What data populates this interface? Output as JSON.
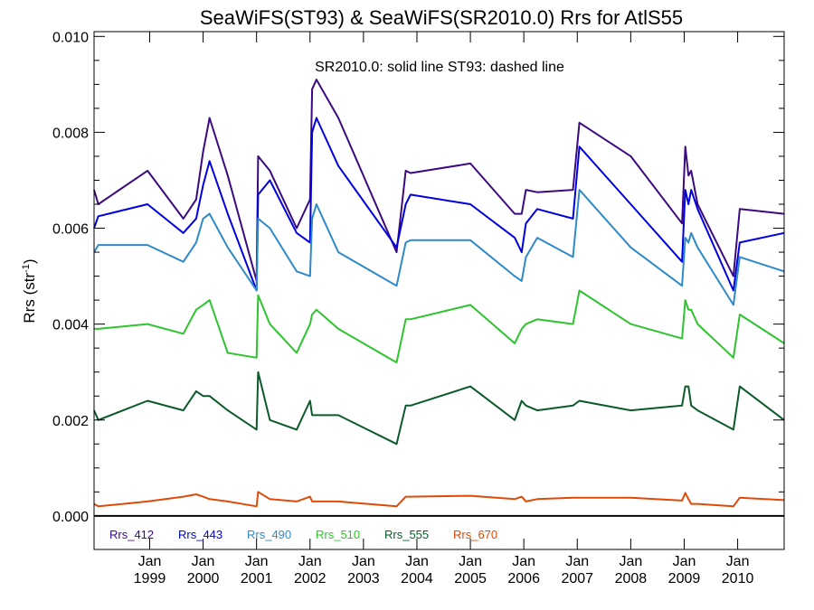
{
  "chart_data": {
    "type": "line",
    "title": "SeaWiFS(ST93) & SeaWiFS(SR2010.0)  Rrs for AtlS55",
    "annotation": "SR2010.0: solid line   ST93: dashed line",
    "ylabel": "Rrs (str",
    "ylabel_superscript": "-1",
    "ylabel_suffix": ")",
    "ylim": [
      -0.0007,
      0.0101
    ],
    "xlim": [
      1997.96,
      2010.87
    ],
    "yticks": [
      "0.000",
      "0.002",
      "0.004",
      "0.006",
      "0.008",
      "0.010"
    ],
    "xticks": [
      {
        "line1": "Jan",
        "line2": "1999"
      },
      {
        "line1": "Jan",
        "line2": "2000"
      },
      {
        "line1": "Jan",
        "line2": "2001"
      },
      {
        "line1": "Jan",
        "line2": "2002"
      },
      {
        "line1": "Jan",
        "line2": "2003"
      },
      {
        "line1": "Jan",
        "line2": "2004"
      },
      {
        "line1": "Jan",
        "line2": "2005"
      },
      {
        "line1": "Jan",
        "line2": "2006"
      },
      {
        "line1": "Jan",
        "line2": "2007"
      },
      {
        "line1": "Jan",
        "line2": "2008"
      },
      {
        "line1": "Jan",
        "line2": "2009"
      },
      {
        "line1": "Jan",
        "line2": "2010"
      }
    ],
    "grid": false,
    "legend_position": "bottom-left",
    "series": [
      {
        "name": "Rrs_412",
        "color": "#3a0a80",
        "x": [
          1997.96,
          1998.04,
          1998.96,
          1999.63,
          1999.87,
          2000.0,
          2000.12,
          2000.46,
          2001.0,
          2001.03,
          2001.25,
          2001.75,
          2002.0,
          2002.04,
          2002.12,
          2002.53,
          2003.62,
          2003.79,
          2003.88,
          2005.0,
          2005.83,
          2005.96,
          2006.04,
          2006.25,
          2006.92,
          2007.04,
          2008.0,
          2008.96,
          2009.02,
          2009.08,
          2009.13,
          2009.25,
          2009.92,
          2010.04,
          2010.87
        ],
        "values": [
          0.0068,
          0.0065,
          0.0072,
          0.0062,
          0.0066,
          0.0076,
          0.0083,
          0.0071,
          0.0049,
          0.0075,
          0.0072,
          0.006,
          0.0066,
          0.0089,
          0.0091,
          0.0083,
          0.0055,
          0.0072,
          0.00715,
          0.00735,
          0.0063,
          0.0063,
          0.0068,
          0.00675,
          0.0068,
          0.0082,
          0.0075,
          0.0061,
          0.0077,
          0.0071,
          0.0072,
          0.0065,
          0.005,
          0.0064,
          0.0063
        ]
      },
      {
        "name": "Rrs_443",
        "color": "#0000e0",
        "x": [
          1997.96,
          1998.04,
          1998.96,
          1999.63,
          1999.87,
          2000.0,
          2000.12,
          2000.46,
          2001.0,
          2001.03,
          2001.25,
          2001.75,
          2002.0,
          2002.04,
          2002.12,
          2002.53,
          2003.62,
          2003.79,
          2003.88,
          2005.0,
          2005.83,
          2005.96,
          2006.04,
          2006.25,
          2006.92,
          2007.04,
          2008.0,
          2008.96,
          2009.02,
          2009.08,
          2009.13,
          2009.25,
          2009.92,
          2010.04,
          2010.87
        ],
        "values": [
          0.006,
          0.00625,
          0.0065,
          0.0059,
          0.0062,
          0.0069,
          0.0074,
          0.0063,
          0.0047,
          0.0067,
          0.007,
          0.0059,
          0.0057,
          0.008,
          0.0083,
          0.0073,
          0.0056,
          0.0065,
          0.0067,
          0.0065,
          0.0058,
          0.0055,
          0.0061,
          0.0064,
          0.0062,
          0.0077,
          0.0065,
          0.0053,
          0.0068,
          0.0065,
          0.0068,
          0.0064,
          0.0047,
          0.0057,
          0.0059
        ]
      },
      {
        "name": "Rrs_490",
        "color": "#2e8ac8",
        "x": [
          1997.96,
          1998.04,
          1998.96,
          1999.63,
          1999.87,
          2000.0,
          2000.12,
          2000.46,
          2001.0,
          2001.03,
          2001.25,
          2001.75,
          2002.0,
          2002.04,
          2002.12,
          2002.53,
          2003.62,
          2003.79,
          2003.88,
          2005.0,
          2005.83,
          2005.96,
          2006.04,
          2006.25,
          2006.92,
          2007.04,
          2008.0,
          2008.96,
          2009.02,
          2009.08,
          2009.13,
          2009.25,
          2009.92,
          2010.04,
          2010.87
        ],
        "values": [
          0.0055,
          0.00565,
          0.00565,
          0.0053,
          0.0057,
          0.0062,
          0.0063,
          0.0056,
          0.0047,
          0.0062,
          0.006,
          0.0051,
          0.005,
          0.0062,
          0.0065,
          0.0055,
          0.0048,
          0.0057,
          0.00575,
          0.00575,
          0.005,
          0.0049,
          0.0054,
          0.0058,
          0.0054,
          0.0068,
          0.0056,
          0.0048,
          0.0058,
          0.0057,
          0.0059,
          0.0056,
          0.0044,
          0.0054,
          0.0051
        ]
      },
      {
        "name": "Rrs_510",
        "color": "#2ec42e",
        "x": [
          1997.96,
          1998.04,
          1998.96,
          1999.63,
          1999.87,
          2000.0,
          2000.12,
          2000.46,
          2001.0,
          2001.03,
          2001.25,
          2001.75,
          2002.0,
          2002.04,
          2002.12,
          2002.53,
          2003.62,
          2003.79,
          2003.88,
          2005.0,
          2005.83,
          2005.96,
          2006.04,
          2006.25,
          2006.92,
          2007.04,
          2008.0,
          2008.96,
          2009.02,
          2009.08,
          2009.13,
          2009.25,
          2009.92,
          2010.04,
          2010.87
        ],
        "values": [
          0.0039,
          0.0039,
          0.004,
          0.0038,
          0.0043,
          0.0044,
          0.0045,
          0.0034,
          0.0033,
          0.0046,
          0.004,
          0.0034,
          0.004,
          0.0042,
          0.0043,
          0.0039,
          0.0032,
          0.0041,
          0.0041,
          0.0044,
          0.0036,
          0.0039,
          0.004,
          0.0041,
          0.004,
          0.0047,
          0.004,
          0.0037,
          0.0045,
          0.0043,
          0.0043,
          0.004,
          0.0033,
          0.0042,
          0.0036
        ]
      },
      {
        "name": "Rrs_555",
        "color": "#0a5a2a",
        "x": [
          1997.96,
          1998.04,
          1998.96,
          1999.63,
          1999.87,
          2000.0,
          2000.12,
          2000.46,
          2001.0,
          2001.03,
          2001.25,
          2001.75,
          2002.0,
          2002.04,
          2002.12,
          2002.53,
          2003.62,
          2003.79,
          2003.88,
          2005.0,
          2005.83,
          2005.96,
          2006.04,
          2006.25,
          2006.92,
          2007.04,
          2008.0,
          2008.96,
          2009.02,
          2009.08,
          2009.13,
          2009.25,
          2009.92,
          2010.04,
          2010.87
        ],
        "values": [
          0.0022,
          0.002,
          0.0024,
          0.0022,
          0.0026,
          0.0025,
          0.0025,
          0.0022,
          0.0018,
          0.003,
          0.002,
          0.0018,
          0.0024,
          0.0021,
          0.0021,
          0.0021,
          0.0015,
          0.0023,
          0.0023,
          0.0027,
          0.002,
          0.0024,
          0.0023,
          0.0022,
          0.0023,
          0.0024,
          0.0022,
          0.0023,
          0.0027,
          0.0027,
          0.0023,
          0.0022,
          0.0018,
          0.0027,
          0.002
        ]
      },
      {
        "name": "Rrs_670",
        "color": "#e04a08",
        "x": [
          1997.96,
          1998.04,
          1998.96,
          1999.63,
          1999.87,
          2000.0,
          2000.12,
          2000.46,
          2001.0,
          2001.03,
          2001.25,
          2001.75,
          2002.0,
          2002.04,
          2002.12,
          2002.53,
          2003.62,
          2003.79,
          2003.88,
          2005.0,
          2005.83,
          2005.96,
          2006.04,
          2006.25,
          2006.92,
          2007.04,
          2008.0,
          2008.96,
          2009.02,
          2009.08,
          2009.13,
          2009.25,
          2009.92,
          2010.04,
          2010.87
        ],
        "values": [
          0.00025,
          0.0002,
          0.0003,
          0.0004,
          0.00045,
          0.0004,
          0.00035,
          0.0003,
          0.0002,
          0.0005,
          0.00035,
          0.0003,
          0.0004,
          0.0003,
          0.0003,
          0.0003,
          0.0002,
          0.0004,
          0.0004,
          0.00042,
          0.00035,
          0.0004,
          0.0003,
          0.00035,
          0.00038,
          0.00038,
          0.00038,
          0.00032,
          0.00048,
          0.00035,
          0.00025,
          0.00025,
          0.0002,
          0.00038,
          0.00033
        ]
      }
    ]
  }
}
